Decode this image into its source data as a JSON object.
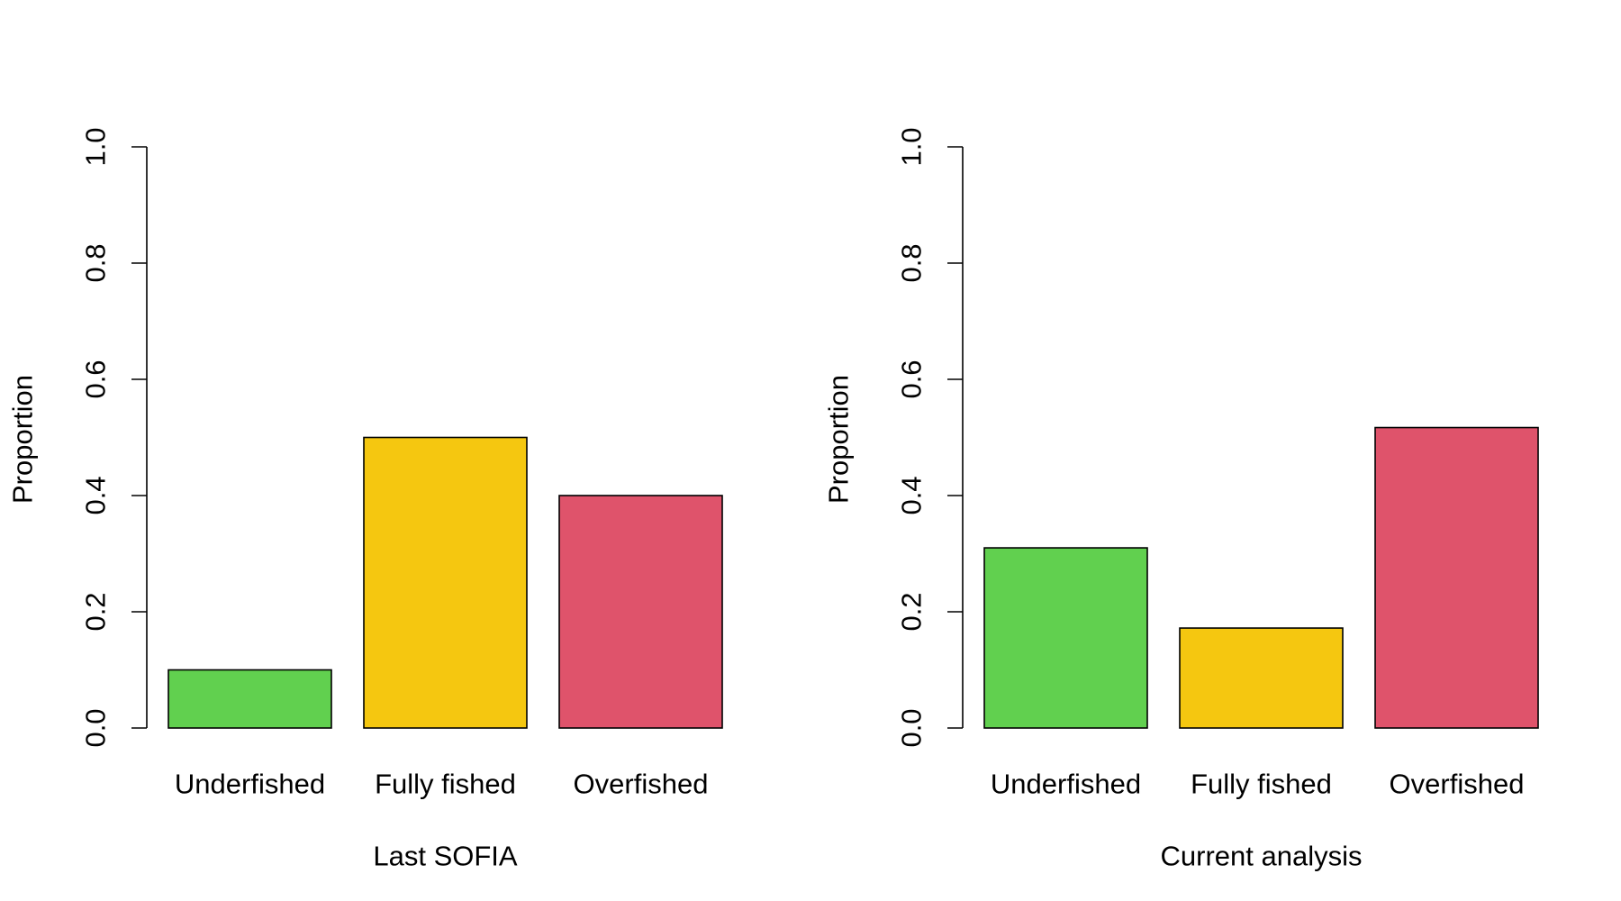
{
  "chart_data": [
    {
      "type": "bar",
      "categories": [
        "Underfished",
        "Fully fished",
        "Overfished"
      ],
      "values": [
        0.1,
        0.5,
        0.4
      ],
      "colors": [
        "#61D04F",
        "#F5C710",
        "#DF536B"
      ],
      "xlabel": "Last SOFIA",
      "ylabel": "Proportion",
      "ylim": [
        0,
        1
      ],
      "yticks": [
        "0.0",
        "0.2",
        "0.4",
        "0.6",
        "0.8",
        "1.0"
      ],
      "grid": false
    },
    {
      "type": "bar",
      "categories": [
        "Underfished",
        "Fully fished",
        "Overfished"
      ],
      "values": [
        0.31,
        0.172,
        0.517
      ],
      "colors": [
        "#61D04F",
        "#F5C710",
        "#DF536B"
      ],
      "xlabel": "Current analysis",
      "ylabel": "Proportion",
      "ylim": [
        0,
        1
      ],
      "yticks": [
        "0.0",
        "0.2",
        "0.4",
        "0.6",
        "0.8",
        "1.0"
      ],
      "grid": false
    }
  ]
}
